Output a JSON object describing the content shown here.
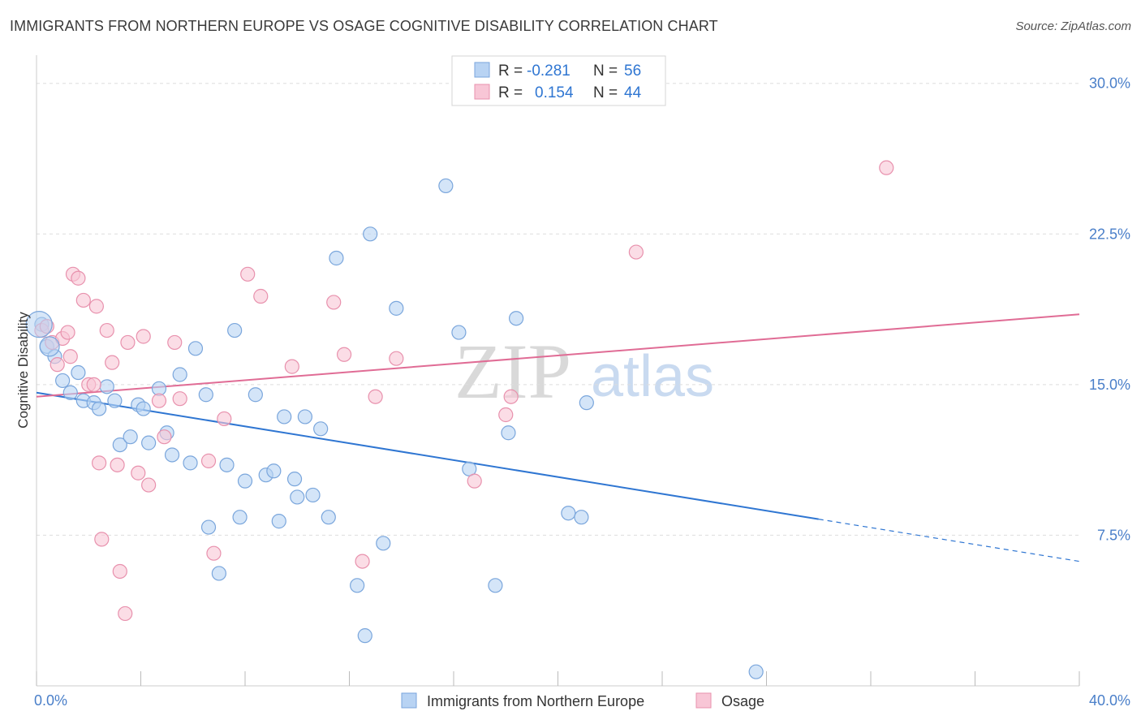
{
  "header": {
    "title": "IMMIGRANTS FROM NORTHERN EUROPE VS OSAGE COGNITIVE DISABILITY CORRELATION CHART",
    "source": "Source: ZipAtlas.com"
  },
  "watermark": {
    "zip": "ZIP",
    "atlas": "atlas"
  },
  "legend_box": {
    "rows": [
      {
        "r_label": "R =",
        "r_value": "-0.281",
        "n_label": "N =",
        "n_value": "56",
        "color": "#a9c8f0",
        "border": "#7aa6dc"
      },
      {
        "r_label": "R =",
        "r_value": "0.154",
        "n_label": "N =",
        "n_value": "44",
        "color": "#f7bfd0",
        "border": "#e891ad"
      }
    ]
  },
  "colors": {
    "blue_fill": "#b8d3f3",
    "blue_stroke": "#7aa6dc",
    "blue_line": "#2f76d2",
    "pink_fill": "#f8c6d6",
    "pink_stroke": "#e891ad",
    "pink_line": "#e06c95",
    "axis_text": "#4a7fc9",
    "grid": "#dddddd"
  },
  "chart_data": {
    "type": "scatter",
    "xlabel": "",
    "ylabel": "Cognitive Disability",
    "xlim": [
      0,
      40
    ],
    "ylim": [
      0,
      31
    ],
    "x_tick_labels": [
      "0.0%",
      "40.0%"
    ],
    "y_ticks": [
      7.5,
      15.0,
      22.5,
      30.0
    ],
    "y_tick_labels": [
      "7.5%",
      "15.0%",
      "22.5%",
      "30.0%"
    ],
    "grid": "horizontal dashed",
    "legend_position": "bottom-center",
    "series": [
      {
        "name": "Immigrants from Northern Europe",
        "color": "#b8d3f3",
        "points": [
          [
            0.2,
            18.0
          ],
          [
            0.4,
            16.9
          ],
          [
            0.7,
            16.4
          ],
          [
            1.0,
            15.2
          ],
          [
            1.3,
            14.6
          ],
          [
            1.6,
            15.6
          ],
          [
            1.8,
            14.2
          ],
          [
            2.2,
            14.1
          ],
          [
            2.4,
            13.8
          ],
          [
            2.7,
            14.9
          ],
          [
            3.0,
            14.2
          ],
          [
            3.2,
            12.0
          ],
          [
            3.6,
            12.4
          ],
          [
            3.9,
            14.0
          ],
          [
            4.1,
            13.8
          ],
          [
            4.3,
            12.1
          ],
          [
            4.7,
            14.8
          ],
          [
            5.0,
            12.6
          ],
          [
            5.2,
            11.5
          ],
          [
            5.5,
            15.5
          ],
          [
            5.9,
            11.1
          ],
          [
            6.1,
            16.8
          ],
          [
            6.5,
            14.5
          ],
          [
            6.6,
            7.9
          ],
          [
            7.0,
            5.6
          ],
          [
            7.3,
            11.0
          ],
          [
            7.6,
            17.7
          ],
          [
            7.8,
            8.4
          ],
          [
            8.0,
            10.2
          ],
          [
            8.4,
            14.5
          ],
          [
            8.8,
            10.5
          ],
          [
            9.1,
            10.7
          ],
          [
            9.3,
            8.2
          ],
          [
            9.5,
            13.4
          ],
          [
            9.9,
            10.3
          ],
          [
            10.0,
            9.4
          ],
          [
            10.3,
            13.4
          ],
          [
            10.6,
            9.5
          ],
          [
            10.9,
            12.8
          ],
          [
            11.2,
            8.4
          ],
          [
            11.5,
            21.3
          ],
          [
            12.3,
            5.0
          ],
          [
            12.6,
            2.5
          ],
          [
            12.8,
            22.5
          ],
          [
            13.3,
            7.1
          ],
          [
            13.8,
            18.8
          ],
          [
            15.7,
            24.9
          ],
          [
            16.2,
            17.6
          ],
          [
            16.6,
            10.8
          ],
          [
            17.6,
            5.0
          ],
          [
            18.1,
            12.6
          ],
          [
            18.4,
            18.3
          ],
          [
            20.4,
            8.6
          ],
          [
            20.9,
            8.4
          ],
          [
            21.1,
            14.1
          ],
          [
            27.6,
            0.7
          ]
        ]
      },
      {
        "name": "Osage",
        "color": "#f8c6d6",
        "points": [
          [
            0.2,
            17.7
          ],
          [
            0.4,
            17.9
          ],
          [
            0.6,
            17.1
          ],
          [
            0.8,
            16.0
          ],
          [
            1.0,
            17.3
          ],
          [
            1.2,
            17.6
          ],
          [
            1.3,
            16.4
          ],
          [
            1.4,
            20.5
          ],
          [
            1.6,
            20.3
          ],
          [
            1.8,
            19.2
          ],
          [
            2.0,
            15.0
          ],
          [
            2.2,
            15.0
          ],
          [
            2.3,
            18.9
          ],
          [
            2.4,
            11.1
          ],
          [
            2.5,
            7.3
          ],
          [
            2.7,
            17.7
          ],
          [
            2.9,
            16.1
          ],
          [
            3.1,
            11.0
          ],
          [
            3.2,
            5.7
          ],
          [
            3.4,
            3.6
          ],
          [
            3.5,
            17.1
          ],
          [
            3.9,
            10.6
          ],
          [
            4.1,
            17.4
          ],
          [
            4.3,
            10.0
          ],
          [
            4.7,
            14.2
          ],
          [
            4.9,
            12.4
          ],
          [
            5.3,
            17.1
          ],
          [
            5.5,
            14.3
          ],
          [
            6.6,
            11.2
          ],
          [
            6.8,
            6.6
          ],
          [
            7.2,
            13.3
          ],
          [
            8.1,
            20.5
          ],
          [
            8.6,
            19.4
          ],
          [
            9.8,
            15.9
          ],
          [
            11.4,
            19.1
          ],
          [
            11.8,
            16.5
          ],
          [
            12.5,
            6.2
          ],
          [
            13.0,
            14.4
          ],
          [
            13.8,
            16.3
          ],
          [
            16.8,
            10.2
          ],
          [
            18.0,
            13.5
          ],
          [
            18.2,
            14.4
          ],
          [
            23.0,
            21.6
          ],
          [
            32.6,
            25.8
          ]
        ]
      }
    ],
    "trend_lines": [
      {
        "series": "Immigrants from Northern Europe",
        "x": [
          0,
          30
        ],
        "y": [
          14.6,
          8.3
        ],
        "dashed_extension_to_x": 40,
        "dashed_end_y": 6.2
      },
      {
        "series": "Osage",
        "x": [
          0,
          40
        ],
        "y": [
          14.4,
          18.5
        ]
      }
    ]
  }
}
